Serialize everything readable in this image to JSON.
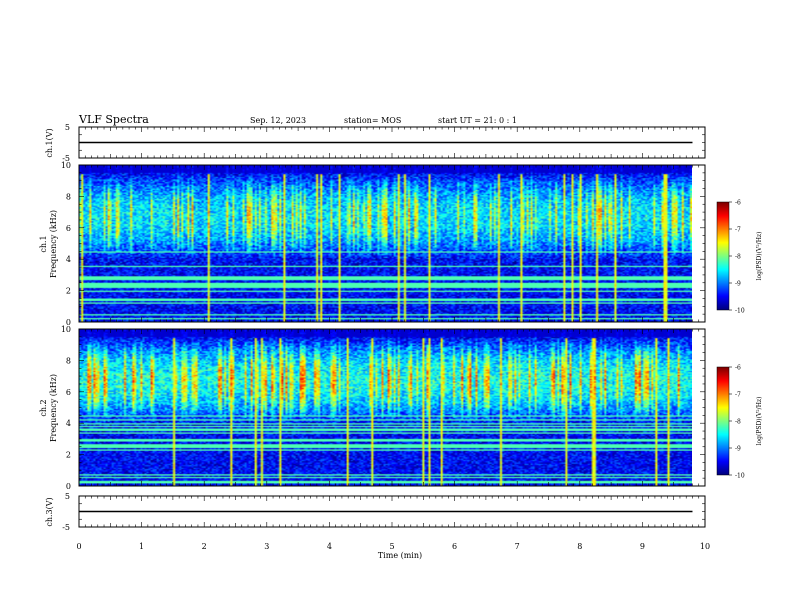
{
  "header": {
    "title": "VLF Spectra",
    "date": "Sep. 12, 2023",
    "station": "station= MOS",
    "start": "start  UT =   21: 0  : 1"
  },
  "chart_data": [
    {
      "type": "line",
      "panel": "ch1-waveform",
      "ylabel": "ch.1(V)",
      "ylim": [
        -5,
        5
      ],
      "yticks": [
        "5",
        "-5"
      ],
      "xlim": [
        0,
        10
      ],
      "series": [
        {
          "x": [
            0,
            9.8
          ],
          "values": [
            0,
            0
          ]
        }
      ]
    },
    {
      "type": "heatmap",
      "panel": "ch1-spectrogram",
      "ylabel": "ch.1\nFrequency (kHz)",
      "ylim": [
        0,
        10
      ],
      "yticks": [
        "0",
        "2",
        "4",
        "6",
        "8",
        "10"
      ],
      "xlim": [
        0,
        10
      ],
      "data_extent_min": 9.8,
      "colorbar": {
        "label": "log(PSD)(V²/Hz)",
        "range": [
          -10,
          -6
        ],
        "ticks": [
          "-6",
          "-7",
          "-8",
          "-9",
          "-10"
        ]
      },
      "description_values": {
        "quiet_floor": -9.5,
        "emission_band_khz": [
          4,
          9.5
        ],
        "emission_peak": -7.2
      }
    },
    {
      "type": "heatmap",
      "panel": "ch2-spectrogram",
      "ylabel": "ch.2\nFrequency (kHz)",
      "ylim": [
        0,
        10
      ],
      "yticks": [
        "0",
        "2",
        "4",
        "6",
        "8",
        "10"
      ],
      "xlim": [
        0,
        10
      ],
      "data_extent_min": 9.8,
      "colorbar": {
        "label": "log(PSD)(V²/Hz)",
        "range": [
          -10,
          -6
        ],
        "ticks": [
          "-6",
          "-7",
          "-8",
          "-9",
          "-10"
        ]
      },
      "description_values": {
        "quiet_floor": -9.5,
        "emission_band_khz": [
          4,
          9.5
        ],
        "emission_peak": -6.8
      }
    },
    {
      "type": "line",
      "panel": "ch3-waveform",
      "ylabel": "ch.3(V)",
      "ylim": [
        -5,
        5
      ],
      "yticks": [
        "5",
        "-5"
      ],
      "xlim": [
        0,
        10
      ],
      "xlabel": "Time  (min)",
      "xticks": [
        "0",
        "1",
        "2",
        "3",
        "4",
        "5",
        "6",
        "7",
        "8",
        "9",
        "10"
      ],
      "series": [
        {
          "x": [
            0,
            9.8
          ],
          "values": [
            0,
            0
          ]
        }
      ]
    }
  ]
}
